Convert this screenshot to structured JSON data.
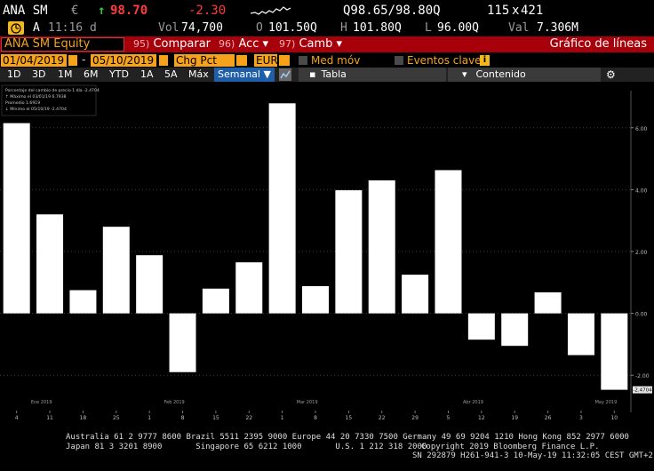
{
  "quote": {
    "ticker": "ANA SM",
    "currency_symbol": "€",
    "up_arrow": "↑",
    "price": "98.70",
    "change": "-2.30",
    "bid_ask": "Q98.65/98.80Q",
    "size": "115",
    "size_sep": "x",
    "size2": "421",
    "alert_letter": "A",
    "time": "11:16 d",
    "vol_label": "Vol",
    "vol_value": "74,700",
    "open_label": "O",
    "open_value": "101.50Q",
    "high_label": "H",
    "high_value": "101.80Q",
    "low_label": "L",
    "low_value": "96.00Q",
    "val_label": "Val",
    "val_value": "7.306M"
  },
  "toolbar": {
    "security": "ANA SM Equity",
    "compare_num": "95)",
    "compare_label": "Comparar",
    "acc_num": "96)",
    "acc_label": "Acc",
    "camb_num": "97)",
    "camb_label": "Camb",
    "dropdown_arrow": "▾",
    "chart_title": "Gráfico de líneas"
  },
  "controls": {
    "start_date": "01/04/2019",
    "dash": "-",
    "end_date": "05/10/2019",
    "mode": "Chg Pct 1D",
    "currency": "EUR",
    "moving_avg_label": "Med móv",
    "events_label": "Eventos clave",
    "info_letter": "i"
  },
  "tabs": {
    "items": [
      "1D",
      "3D",
      "1M",
      "6M",
      "YTD",
      "1A",
      "5A",
      "Máx"
    ],
    "weekly": "Semanal ▼",
    "table": "Tabla",
    "content": "Contenido",
    "gear": "⚙"
  },
  "legend": {
    "lines": [
      "Porcentaje del cambio de precio 1 día -2.4704",
      "↑ Máximo el 03/01/19            6.7938",
      "   Promedio                      1.6919",
      "↓ Mínimo el 05/10/19           -2.4704"
    ]
  },
  "chart_data": {
    "type": "bar",
    "ylim": [
      -3.2,
      7.2
    ],
    "y_ticks": [
      "6.00",
      "4.00",
      "2.00",
      "0.00",
      "-2.00"
    ],
    "y_tick_values": [
      6,
      4,
      2,
      0,
      -2
    ],
    "last_value_label": "-2.4704",
    "x_tick_labels": [
      "4",
      "11",
      "18",
      "25",
      "1",
      "8",
      "15",
      "22",
      "1",
      "8",
      "15",
      "22",
      "29",
      "5",
      "12",
      "19",
      "26",
      "3",
      "10"
    ],
    "month_labels": [
      "Ene 2019",
      "Feb 2019",
      "Mar 2019",
      "Abr 2019",
      "May 2019"
    ],
    "values": [
      6.15,
      3.2,
      0.75,
      2.8,
      1.88,
      -1.9,
      0.8,
      1.65,
      6.79,
      0.88,
      3.98,
      4.3,
      1.25,
      4.63,
      -0.85,
      -1.05,
      0.68,
      -1.35,
      -2.4704
    ]
  },
  "footer": {
    "line1": "Australia 61 2 9777 8600 Brazil 5511 2395 9000 Europe 44 20 7330 7500 Germany 49 69 9204 1210 Hong Kong 852 2977 6000",
    "line2a": "Japan 81 3 3201 8900       Singapore 65 6212 1000       U.S. 1 212 318 2000",
    "line2b": "Copyright 2019 Bloomberg Finance L.P.",
    "line3": "SN 292879 H261-941-3 10-May-19 11:32:05 CEST GMT+2:00"
  },
  "colors": {
    "orange": "#f7a21b",
    "red_bar": "#a8000b",
    "price_red": "#ff3b3b",
    "bars": "#ffffff"
  }
}
